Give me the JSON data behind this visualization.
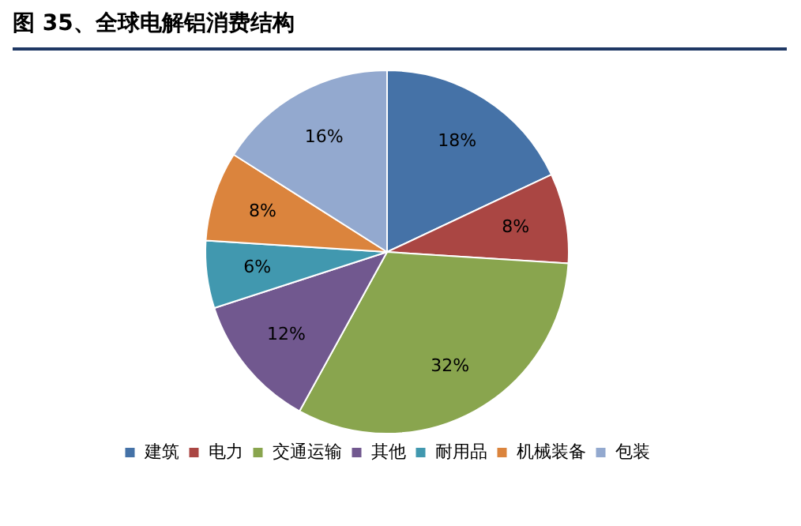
{
  "chart_data": {
    "type": "pie",
    "title": "图 35、全球电解铝消费结构",
    "categories": [
      "建筑",
      "电力",
      "交通运输",
      "其他",
      "耐用品",
      "机械装备",
      "包装"
    ],
    "values": [
      18,
      8,
      32,
      12,
      6,
      8,
      16
    ],
    "colors": [
      "#4572a7",
      "#aa4643",
      "#89a54e",
      "#71588f",
      "#4198af",
      "#db843d",
      "#93a9cf"
    ],
    "value_labels": [
      "18%",
      "8%",
      "32%",
      "12%",
      "6%",
      "8%",
      "16%"
    ],
    "legend": "bottom"
  }
}
